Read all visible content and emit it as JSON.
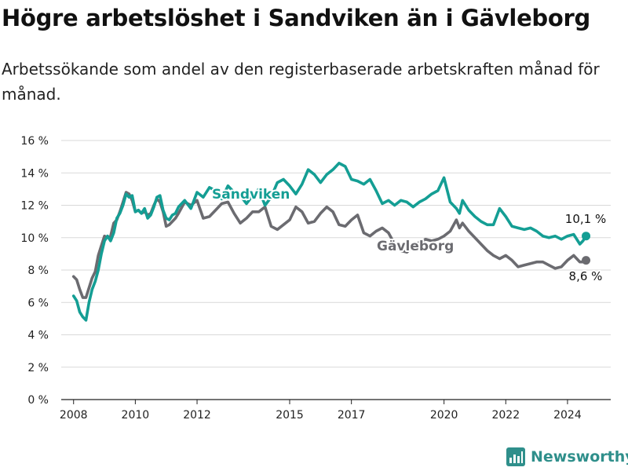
{
  "title": "Högre arbetslöshet i Sandviken än i Gävleborg",
  "subtitle": "Arbetssökande som andel av den registerbaserade arbetskraften månad för månad.",
  "brand": "Newsworthy",
  "colors": {
    "sandviken": "#149e94",
    "gavleborg": "#6b6b70",
    "grid": "#d9d9d9",
    "brand": "#2f8f8b"
  },
  "chart_data": {
    "type": "line",
    "title": "Högre arbetslöshet i Sandviken än i Gävleborg",
    "subtitle": "Arbetssökande som andel av den registerbaserade arbetskraften månad för månad.",
    "xlabel": "",
    "ylabel": "",
    "xlim": [
      2007.6,
      2025.4
    ],
    "ylim": [
      0,
      16
    ],
    "yticks": [
      0,
      2,
      4,
      6,
      8,
      10,
      12,
      14,
      16
    ],
    "ytick_labels": [
      "0 %",
      "2 %",
      "4 %",
      "6 %",
      "8 %",
      "10 %",
      "12 %",
      "14 %",
      "16 %"
    ],
    "xticks": [
      2008,
      2010,
      2012,
      2015,
      2017,
      2020,
      2022,
      2024
    ],
    "xtick_labels": [
      "2008",
      "2010",
      "2012",
      "2015",
      "2017",
      "2020",
      "2022",
      "2024"
    ],
    "grid": true,
    "legend": "inline labels",
    "series": [
      {
        "name": "Sandviken",
        "end_label": "10,1 %",
        "x": [
          2008.0,
          2008.1,
          2008.2,
          2008.3,
          2008.4,
          2008.5,
          2008.6,
          2008.7,
          2008.8,
          2008.9,
          2009.0,
          2009.1,
          2009.2,
          2009.3,
          2009.4,
          2009.5,
          2009.6,
          2009.7,
          2009.8,
          2009.9,
          2010.0,
          2010.1,
          2010.2,
          2010.3,
          2010.4,
          2010.5,
          2010.6,
          2010.7,
          2010.8,
          2010.9,
          2011.0,
          2011.1,
          2011.2,
          2011.3,
          2011.4,
          2011.6,
          2011.8,
          2012.0,
          2012.2,
          2012.4,
          2012.6,
          2012.8,
          2013.0,
          2013.2,
          2013.4,
          2013.6,
          2013.8,
          2014.0,
          2014.2,
          2014.4,
          2014.6,
          2014.8,
          2015.0,
          2015.2,
          2015.4,
          2015.6,
          2015.8,
          2016.0,
          2016.2,
          2016.4,
          2016.6,
          2016.8,
          2017.0,
          2017.2,
          2017.4,
          2017.6,
          2017.8,
          2018.0,
          2018.2,
          2018.4,
          2018.6,
          2018.8,
          2019.0,
          2019.2,
          2019.4,
          2019.6,
          2019.8,
          2020.0,
          2020.2,
          2020.4,
          2020.5,
          2020.6,
          2020.8,
          2021.0,
          2021.2,
          2021.4,
          2021.6,
          2021.8,
          2022.0,
          2022.2,
          2022.4,
          2022.6,
          2022.8,
          2023.0,
          2023.2,
          2023.4,
          2023.6,
          2023.8,
          2024.0,
          2024.2,
          2024.4,
          2024.5,
          2024.6
        ],
        "y": [
          6.4,
          6.1,
          5.4,
          5.1,
          4.9,
          6.0,
          6.8,
          7.3,
          8.0,
          9.0,
          9.8,
          10.1,
          9.8,
          10.3,
          11.2,
          11.5,
          12.0,
          12.7,
          12.5,
          12.6,
          11.6,
          11.7,
          11.5,
          11.8,
          11.2,
          11.4,
          11.9,
          12.5,
          12.6,
          11.7,
          11.2,
          11.1,
          11.4,
          11.5,
          11.9,
          12.3,
          11.8,
          12.8,
          12.5,
          13.1,
          12.9,
          12.4,
          13.2,
          12.8,
          12.6,
          12.1,
          12.6,
          13.0,
          12.0,
          12.5,
          13.4,
          13.6,
          13.2,
          12.7,
          13.3,
          14.2,
          13.9,
          13.4,
          13.9,
          14.2,
          14.6,
          14.4,
          13.6,
          13.5,
          13.3,
          13.6,
          12.9,
          12.1,
          12.3,
          12.0,
          12.3,
          12.2,
          11.9,
          12.2,
          12.4,
          12.7,
          12.9,
          13.7,
          12.2,
          11.8,
          11.5,
          12.3,
          11.7,
          11.3,
          11.0,
          10.8,
          10.8,
          11.8,
          11.3,
          10.7,
          10.6,
          10.5,
          10.6,
          10.4,
          10.1,
          10.0,
          10.1,
          9.9,
          10.1,
          10.2,
          9.6,
          9.8,
          10.1
        ]
      },
      {
        "name": "Gävleborg",
        "end_label": "8,6 %",
        "x": [
          2008.0,
          2008.1,
          2008.2,
          2008.3,
          2008.4,
          2008.5,
          2008.6,
          2008.7,
          2008.8,
          2008.9,
          2009.0,
          2009.1,
          2009.2,
          2009.3,
          2009.4,
          2009.5,
          2009.6,
          2009.7,
          2009.8,
          2009.9,
          2010.0,
          2010.1,
          2010.2,
          2010.3,
          2010.4,
          2010.5,
          2010.6,
          2010.7,
          2010.8,
          2010.9,
          2011.0,
          2011.1,
          2011.2,
          2011.3,
          2011.4,
          2011.6,
          2011.8,
          2012.0,
          2012.2,
          2012.4,
          2012.6,
          2012.8,
          2013.0,
          2013.2,
          2013.4,
          2013.6,
          2013.8,
          2014.0,
          2014.2,
          2014.4,
          2014.6,
          2014.8,
          2015.0,
          2015.2,
          2015.4,
          2015.6,
          2015.8,
          2016.0,
          2016.2,
          2016.4,
          2016.6,
          2016.8,
          2017.0,
          2017.2,
          2017.4,
          2017.6,
          2017.8,
          2018.0,
          2018.2,
          2018.4,
          2018.6,
          2018.8,
          2019.0,
          2019.2,
          2019.4,
          2019.6,
          2019.8,
          2020.0,
          2020.2,
          2020.4,
          2020.5,
          2020.6,
          2020.8,
          2021.0,
          2021.2,
          2021.4,
          2021.6,
          2021.8,
          2022.0,
          2022.2,
          2022.4,
          2022.6,
          2022.8,
          2023.0,
          2023.2,
          2023.4,
          2023.6,
          2023.8,
          2024.0,
          2024.2,
          2024.4,
          2024.5,
          2024.6
        ],
        "y": [
          7.6,
          7.4,
          6.8,
          6.3,
          6.3,
          6.9,
          7.5,
          7.9,
          8.9,
          9.5,
          10.1,
          10.0,
          10.1,
          10.9,
          11.1,
          11.6,
          12.2,
          12.8,
          12.7,
          12.3,
          11.6,
          11.7,
          11.5,
          11.6,
          11.4,
          11.5,
          12.0,
          12.4,
          12.2,
          11.6,
          10.7,
          10.8,
          11.0,
          11.2,
          11.5,
          12.2,
          12.0,
          12.3,
          11.2,
          11.3,
          11.7,
          12.1,
          12.2,
          11.5,
          10.9,
          11.2,
          11.6,
          11.6,
          11.9,
          10.7,
          10.5,
          10.8,
          11.1,
          11.9,
          11.6,
          10.9,
          11.0,
          11.5,
          11.9,
          11.6,
          10.8,
          10.7,
          11.1,
          11.4,
          10.3,
          10.1,
          10.4,
          10.6,
          10.3,
          9.6,
          9.2,
          9.1,
          9.5,
          9.7,
          9.9,
          9.8,
          9.9,
          10.1,
          10.4,
          11.1,
          10.6,
          10.9,
          10.4,
          10.0,
          9.6,
          9.2,
          8.9,
          8.7,
          8.9,
          8.6,
          8.2,
          8.3,
          8.4,
          8.5,
          8.5,
          8.3,
          8.1,
          8.2,
          8.6,
          8.9,
          8.5,
          8.5,
          8.6
        ]
      }
    ]
  }
}
